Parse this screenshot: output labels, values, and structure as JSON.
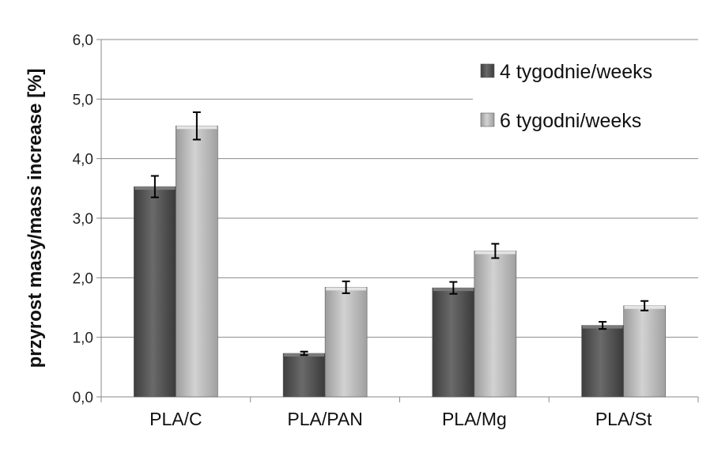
{
  "chart_data": {
    "type": "bar",
    "title": "",
    "xlabel": "",
    "ylabel": "przyrost masy/mass increase [%]",
    "ylim": [
      0,
      6
    ],
    "yticks": [
      "0,0",
      "1,0",
      "2,0",
      "3,0",
      "4,0",
      "5,0",
      "6,0"
    ],
    "categories": [
      "PLA/C",
      "PLA/PAN",
      "PLA/Mg",
      "PLA/St"
    ],
    "series": [
      {
        "name": "4 tygodnie/weeks",
        "values": [
          3.53,
          0.73,
          1.83,
          1.2
        ],
        "errors": [
          0.18,
          0.03,
          0.1,
          0.06
        ],
        "color": "#555555"
      },
      {
        "name": "6 tygodni/weeks",
        "values": [
          4.55,
          1.84,
          2.45,
          1.53
        ],
        "errors": [
          0.23,
          0.1,
          0.12,
          0.08
        ],
        "color": "#b8b8b8"
      }
    ],
    "grid": true,
    "legend_position": "top-right"
  }
}
